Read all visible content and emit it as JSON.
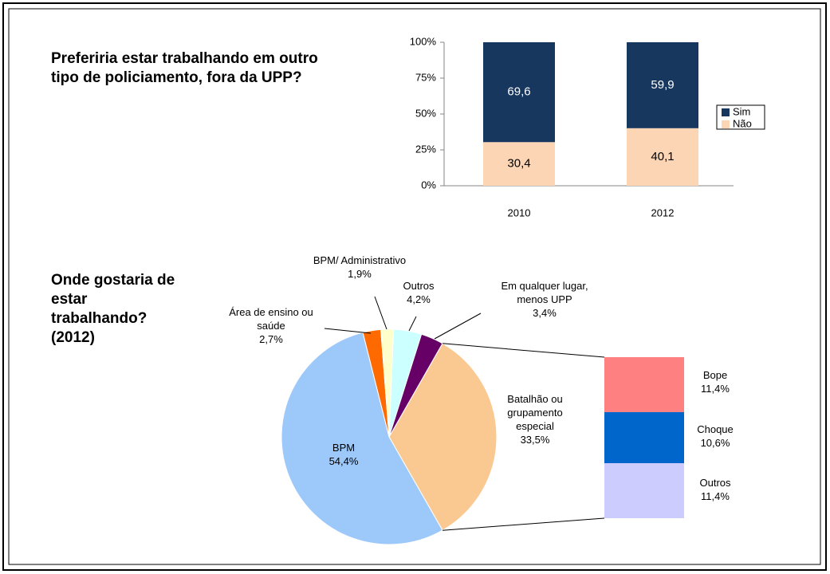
{
  "chart_data": [
    {
      "type": "bar",
      "title": "Preferiria estar trabalhando em outro tipo de policiamento, fora da UPP?",
      "categories": [
        "2010",
        "2012"
      ],
      "series": [
        {
          "name": "Sim",
          "color": "#17375e",
          "values": [
            69.6,
            59.9
          ],
          "value_labels": [
            "69,6",
            "59,9"
          ]
        },
        {
          "name": "Não",
          "color": "#fcd5b4",
          "values": [
            30.4,
            40.1
          ],
          "value_labels": [
            "30,4",
            "40,1"
          ]
        }
      ],
      "ylim": [
        0,
        100
      ],
      "yticks": [
        {
          "value": 0,
          "label": "0%"
        },
        {
          "value": 25,
          "label": "25%"
        },
        {
          "value": 50,
          "label": "50%"
        },
        {
          "value": 75,
          "label": "75%"
        },
        {
          "value": 100,
          "label": "100%"
        }
      ],
      "stacked": true,
      "legend": "right"
    },
    {
      "type": "pie",
      "title": "Onde gostaria de estar trabalhando? (2012)",
      "categories": [
        "Batalhão ou grupamento especial",
        "BPM",
        "Área de ensino ou saúde",
        "BPM/ Administrativo",
        "Outros",
        "Em qualquer lugar, menos UPP"
      ],
      "values": [
        33.5,
        54.4,
        2.7,
        1.9,
        4.2,
        3.4
      ],
      "value_labels": [
        "33,5%",
        "54,4%",
        "2,7%",
        "1,9%",
        "4,2%",
        "3,4%"
      ],
      "colors": [
        "#fac992",
        "#9dc8fa",
        "#ff6a00",
        "#ffffcc",
        "#ccffff",
        "#660066"
      ],
      "breakdown": {
        "categories": [
          "Bope",
          "Choque",
          "Outros"
        ],
        "values": [
          11.4,
          10.6,
          11.4
        ],
        "value_labels": [
          "11,4%",
          "10,6%",
          "11,4%"
        ],
        "colors": [
          "#ff8080",
          "#0066cc",
          "#ccccff"
        ]
      }
    }
  ]
}
